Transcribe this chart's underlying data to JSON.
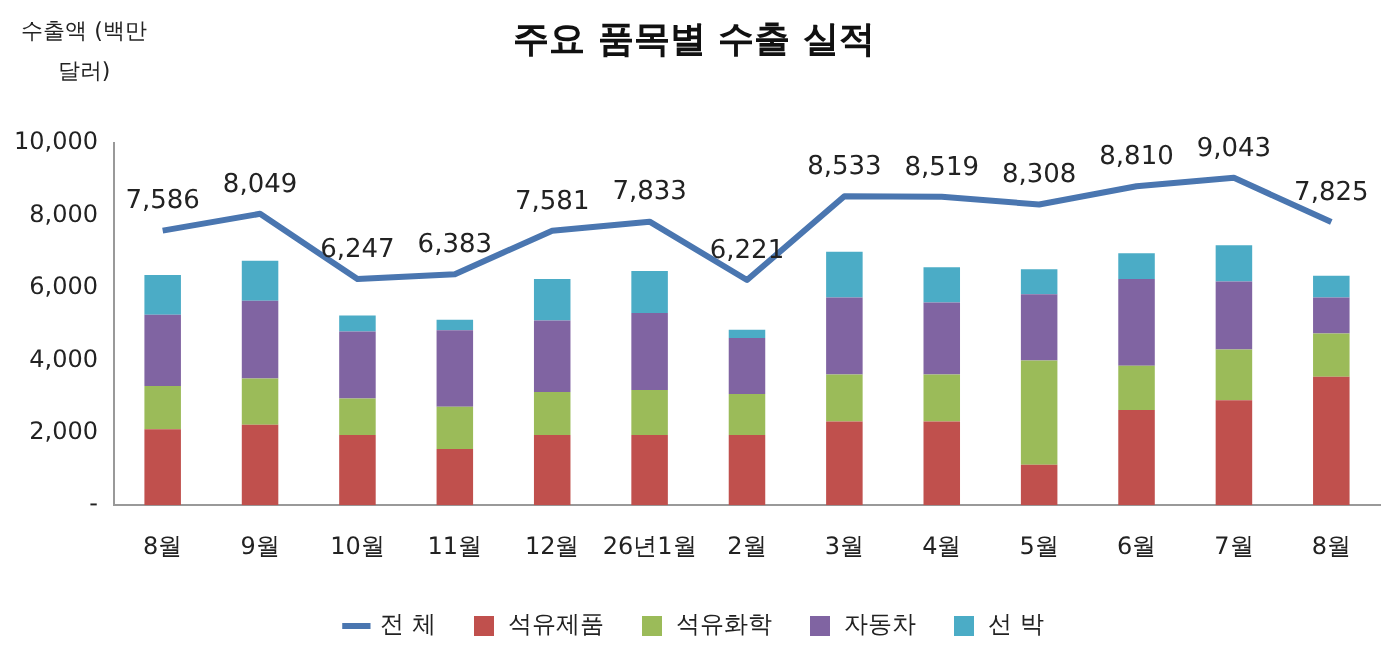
{
  "chart_data": {
    "type": "bar",
    "title": "주요 품목별 수출 실적",
    "ylabel": "수출액 (백만 달러)",
    "categories": [
      "8월",
      "9월",
      "10월",
      "11월",
      "12월",
      "26년1월",
      "2월",
      "3월",
      "4월",
      "5월",
      "6월",
      "7월",
      "8월"
    ],
    "stacked": true,
    "series": [
      {
        "name": "석유제품",
        "color": "#c0504d",
        "values": [
          2100,
          2220,
          1940,
          1550,
          1940,
          1940,
          1940,
          2310,
          2310,
          1120,
          2630,
          2900,
          3550
        ]
      },
      {
        "name": "석유화학",
        "color": "#9bbb59",
        "values": [
          1190,
          1280,
          1010,
          1170,
          1190,
          1240,
          1130,
          1300,
          1300,
          2880,
          1220,
          1400,
          1190
        ]
      },
      {
        "name": "자동차",
        "color": "#8064a2",
        "values": [
          1970,
          2150,
          1850,
          2110,
          1970,
          2130,
          1550,
          2130,
          1990,
          1830,
          2400,
          1880,
          1000
        ]
      },
      {
        "name": "선 박",
        "color": "#4bacc6",
        "values": [
          1100,
          1100,
          440,
          290,
          1150,
          1160,
          230,
          1260,
          970,
          690,
          710,
          1000,
          600
        ]
      },
      {
        "name": "전 체",
        "type": "line",
        "color": "#4a76b0",
        "marker": "none",
        "values": [
          7586,
          8049,
          6247,
          6383,
          7581,
          7833,
          6221,
          8533,
          8519,
          8308,
          8810,
          9043,
          7825
        ],
        "value_labels": [
          "7,586",
          "8,049",
          "6,247",
          "6,383",
          "7,581",
          "7,833",
          "6,221",
          "8,533",
          "8,519",
          "8,308",
          "8,810",
          "9,043",
          "7,825"
        ]
      }
    ],
    "ylim": [
      0,
      10000
    ],
    "yticks": [
      {
        "value": 0,
        "label": "-"
      },
      {
        "value": 2000,
        "label": "2,000"
      },
      {
        "value": 4000,
        "label": "4,000"
      },
      {
        "value": 6000,
        "label": "6,000"
      },
      {
        "value": 8000,
        "label": "8,000"
      },
      {
        "value": 10000,
        "label": "10,000"
      }
    ],
    "legend": "bottom"
  }
}
